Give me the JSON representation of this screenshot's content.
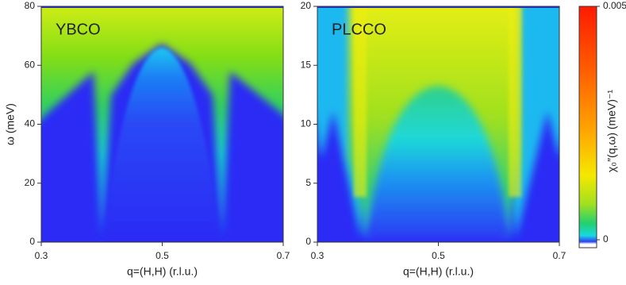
{
  "chart_data": [
    {
      "type": "heatmap",
      "annotation": "YBCO",
      "xlabel": "q=(H,H) (r.l.u.)",
      "ylabel": "ω (meV)",
      "xlim": [
        0.3,
        0.7
      ],
      "xticks": [
        0.3,
        0.5,
        0.7
      ],
      "ylim": [
        0,
        80
      ],
      "yticks": [
        0,
        20,
        40,
        60,
        80
      ]
    },
    {
      "type": "heatmap",
      "annotation": "PLCCO",
      "xlabel": "q=(H,H) (r.l.u.)",
      "xlim": [
        0.3,
        0.7
      ],
      "xticks": [
        0.3,
        0.5,
        0.7
      ],
      "ylim": [
        0,
        20
      ],
      "yticks": [
        0,
        5,
        10,
        15,
        20
      ],
      "colorbar": {
        "label": "χ₀″(q,ω) (meV)⁻¹",
        "lim": [
          0,
          0.005
        ],
        "ticks": [
          0,
          0.005
        ]
      }
    }
  ]
}
